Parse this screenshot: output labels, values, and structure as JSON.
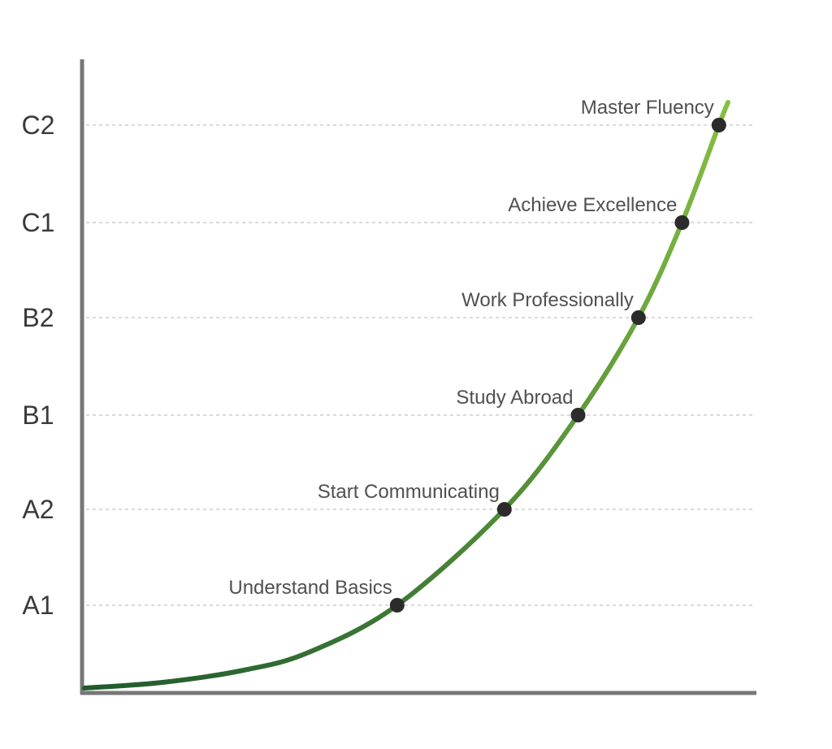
{
  "chart_data": {
    "type": "line",
    "title": "",
    "xlabel": "",
    "ylabel": "",
    "levels": [
      "A1",
      "A2",
      "B1",
      "B2",
      "C1",
      "C2"
    ],
    "milestones": [
      {
        "level": "A1",
        "label": "Understand Basics",
        "x": 4.7
      },
      {
        "level": "A2",
        "label": "Start Communicating",
        "x": 6.3
      },
      {
        "level": "B1",
        "label": "Study Abroad",
        "x": 7.4
      },
      {
        "level": "B2",
        "label": "Work Professionally",
        "x": 8.3
      },
      {
        "level": "C1",
        "label": "Achieve Excellence",
        "x": 8.95
      },
      {
        "level": "C2",
        "label": "Master Fluency",
        "x": 9.5
      }
    ],
    "grid": true,
    "colors": {
      "curve_start": "#1f5a2e",
      "curve_end": "#86c043",
      "axis": "#777777",
      "dot": "#2b2b2b"
    }
  }
}
